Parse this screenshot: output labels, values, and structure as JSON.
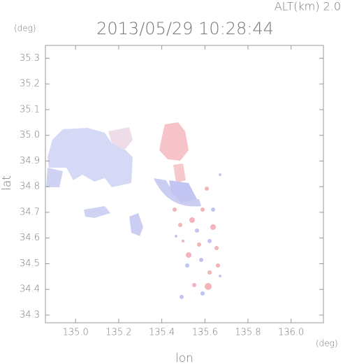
{
  "chart_data": {
    "type": "map",
    "title": "2013/05/29 10:28:44",
    "annotation": "ALT(km)  2.0",
    "y_unit": "(deg)",
    "x_unit": "(deg)",
    "xlabel": "lon",
    "ylabel": "lat",
    "xlim": [
      134.86,
      136.15
    ],
    "ylim": [
      34.27,
      35.35
    ],
    "xticks": [
      {
        "value": 135,
        "label": "135.0"
      },
      135.2,
      135.4,
      135.6,
      135.8,
      {
        "value": 136,
        "label": "136.0"
      }
    ],
    "yticks": [
      34.3,
      34.4,
      34.5,
      34.6,
      34.7,
      34.8,
      34.9,
      {
        "value": 35,
        "label": "35.0"
      },
      35.1,
      35.2,
      35.3
    ]
  }
}
